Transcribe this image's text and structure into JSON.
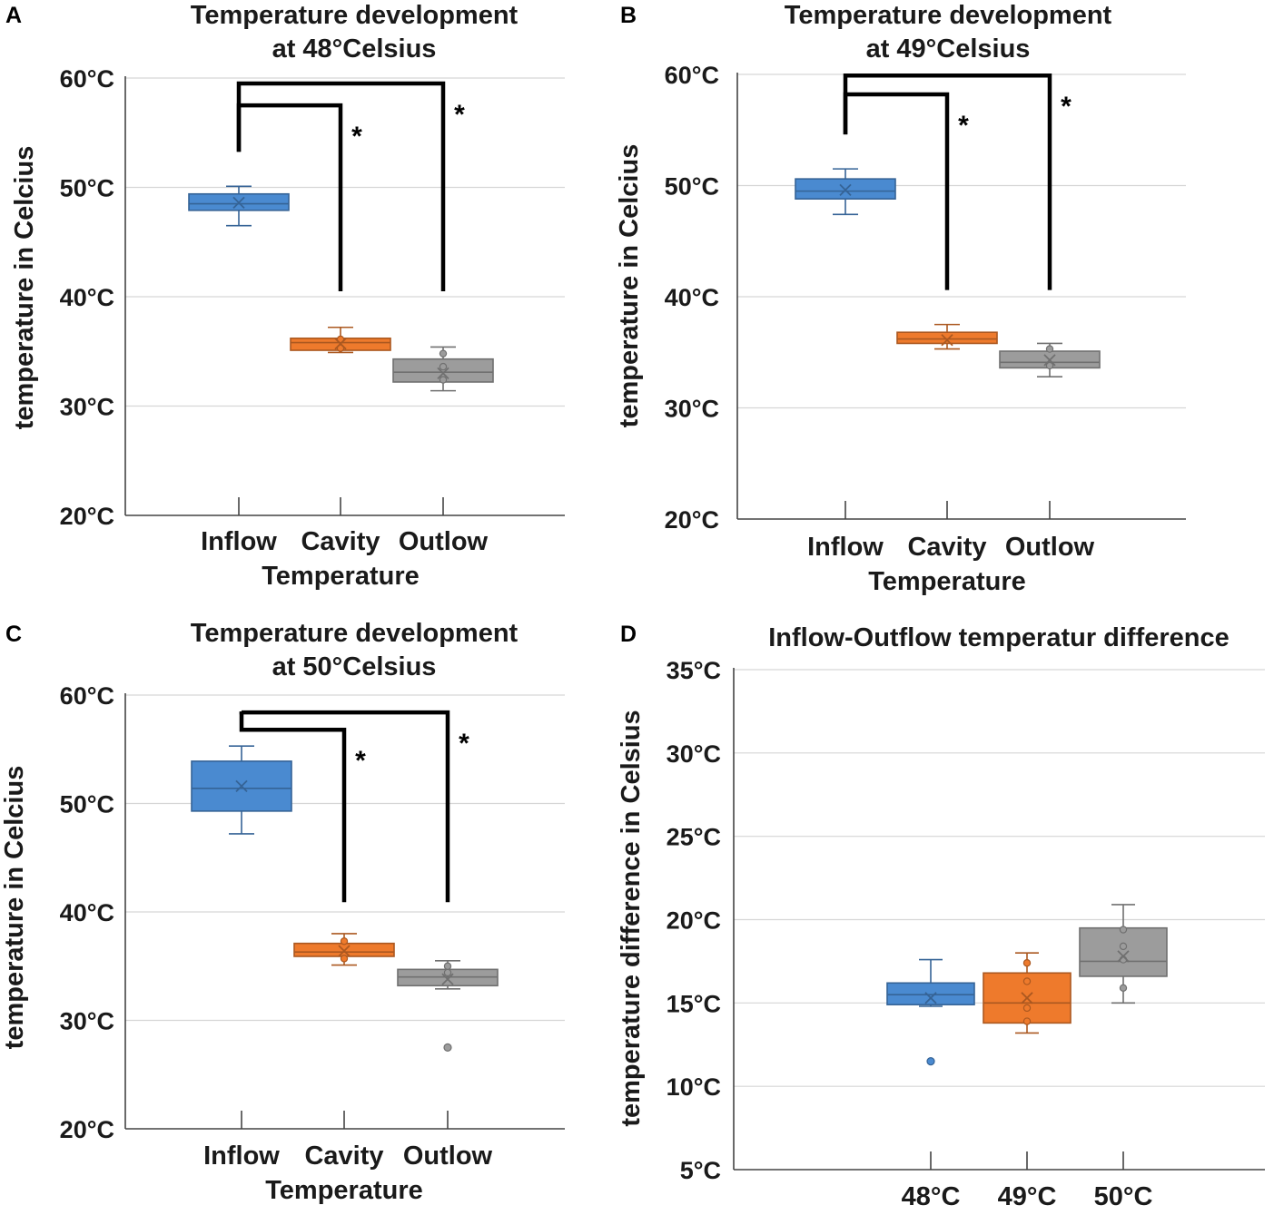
{
  "colors": {
    "Inflow": "#4a8ad0",
    "Cavity": "#ee7a2c",
    "Outlow": "#9c9c9c",
    "48°C": "#4a8ad0",
    "49°C": "#ee7a2c",
    "50°C": "#9c9c9c"
  },
  "chart_data": [
    {
      "panel": "A",
      "type": "box",
      "title_lines": [
        "Temperature development",
        "at 48°Celsius"
      ],
      "ylabel": "temperature in Celcius",
      "xlabel": "Temperature",
      "ylim": [
        20,
        60
      ],
      "yticks": [
        {
          "v": 20,
          "label": "20°C"
        },
        {
          "v": 30,
          "label": "30°C"
        },
        {
          "v": 40,
          "label": "40°C"
        },
        {
          "v": 50,
          "label": "50°C"
        },
        {
          "v": 60,
          "label": "60°C"
        }
      ],
      "categories": [
        "Inflow",
        "Cavity",
        "Outlow"
      ],
      "boxes": [
        {
          "category": "Inflow",
          "min": 46.5,
          "q1": 47.9,
          "median": 48.5,
          "q3": 49.4,
          "max": 50.1,
          "mean": 48.6,
          "points": [],
          "outliers": []
        },
        {
          "category": "Cavity",
          "min": 34.9,
          "q1": 35.1,
          "median": 35.8,
          "q3": 36.2,
          "max": 37.2,
          "mean": 35.7,
          "points": [
            35.3,
            36.1
          ],
          "outliers": []
        },
        {
          "category": "Outlow",
          "min": 31.4,
          "q1": 32.2,
          "median": 33.1,
          "q3": 34.3,
          "max": 35.4,
          "mean": 33.0,
          "points": [
            32.4,
            33.6,
            34.8
          ],
          "outliers": []
        }
      ],
      "brackets": [
        {
          "from": "Inflow",
          "to": "Cavity",
          "y": 57.5,
          "bottom": 40.5,
          "label": "*"
        },
        {
          "from": "Inflow",
          "to": "Outlow",
          "y": 59.5,
          "bottom": 40.5,
          "label": "*"
        }
      ]
    },
    {
      "panel": "B",
      "type": "box",
      "title_lines": [
        "Temperature development",
        "at 49°Celsius"
      ],
      "ylabel": "temperature in Celcius",
      "xlabel": "Temperature",
      "ylim": [
        20,
        60
      ],
      "yticks": [
        {
          "v": 20,
          "label": "20°C"
        },
        {
          "v": 30,
          "label": "30°C"
        },
        {
          "v": 40,
          "label": "40°C"
        },
        {
          "v": 50,
          "label": "50°C"
        },
        {
          "v": 60,
          "label": "60°C"
        }
      ],
      "categories": [
        "Inflow",
        "Cavity",
        "Outlow"
      ],
      "boxes": [
        {
          "category": "Inflow",
          "min": 47.4,
          "q1": 48.8,
          "median": 49.5,
          "q3": 50.6,
          "max": 51.5,
          "mean": 49.6,
          "points": [],
          "outliers": []
        },
        {
          "category": "Cavity",
          "min": 35.3,
          "q1": 35.8,
          "median": 36.2,
          "q3": 36.8,
          "max": 37.5,
          "mean": 36.1,
          "points": [],
          "outliers": []
        },
        {
          "category": "Outlow",
          "min": 32.8,
          "q1": 33.6,
          "median": 34.1,
          "q3": 35.1,
          "max": 35.8,
          "mean": 34.3,
          "points": [
            33.8,
            35.3
          ],
          "outliers": []
        }
      ],
      "brackets": [
        {
          "from": "Inflow",
          "to": "Cavity",
          "y": 58.2,
          "bottom": 40.6,
          "label": "*"
        },
        {
          "from": "Inflow",
          "to": "Outlow",
          "y": 59.9,
          "bottom": 40.6,
          "label": "*"
        }
      ]
    },
    {
      "panel": "C",
      "type": "box",
      "title_lines": [
        "Temperature development",
        "at 50°Celsius"
      ],
      "ylabel": "temperature in Celcius",
      "xlabel": "Temperature",
      "ylim": [
        20,
        60
      ],
      "yticks": [
        {
          "v": 20,
          "label": "20°C"
        },
        {
          "v": 30,
          "label": "30°C"
        },
        {
          "v": 40,
          "label": "40°C"
        },
        {
          "v": 50,
          "label": "50°C"
        },
        {
          "v": 60,
          "label": "60°C"
        }
      ],
      "categories": [
        "Inflow",
        "Cavity",
        "Outlow"
      ],
      "boxes": [
        {
          "category": "Inflow",
          "min": 47.2,
          "q1": 49.3,
          "median": 51.4,
          "q3": 53.9,
          "max": 55.3,
          "mean": 51.6,
          "points": [],
          "outliers": []
        },
        {
          "category": "Cavity",
          "min": 35.1,
          "q1": 35.9,
          "median": 36.3,
          "q3": 37.1,
          "max": 38.0,
          "mean": 36.4,
          "points": [
            35.7,
            37.3
          ],
          "outliers": []
        },
        {
          "category": "Outlow",
          "min": 32.9,
          "q1": 33.2,
          "median": 34.0,
          "q3": 34.7,
          "max": 35.5,
          "mean": 33.8,
          "points": [
            34.4,
            35.0
          ],
          "outliers": [
            27.5
          ]
        }
      ],
      "brackets": [
        {
          "from": "Inflow",
          "to": "Cavity",
          "y": 56.8,
          "bottom": 40.9,
          "label": "*"
        },
        {
          "from": "Inflow",
          "to": "Outlow",
          "y": 58.4,
          "bottom": 40.9,
          "label": "*"
        }
      ]
    },
    {
      "panel": "D",
      "type": "box",
      "title_lines": [
        "Inflow-Outflow temperatur difference"
      ],
      "ylabel": "temperature difference in Celsius",
      "xlabel": "",
      "ylim": [
        5,
        35
      ],
      "yticks": [
        {
          "v": 5,
          "label": "5°C"
        },
        {
          "v": 10,
          "label": "10°C"
        },
        {
          "v": 15,
          "label": "15°C"
        },
        {
          "v": 20,
          "label": "20°C"
        },
        {
          "v": 25,
          "label": "25°C"
        },
        {
          "v": 30,
          "label": "30°C"
        },
        {
          "v": 35,
          "label": "35°C"
        }
      ],
      "categories": [
        "48°C",
        "49°C",
        "50°C"
      ],
      "boxes": [
        {
          "category": "48°C",
          "min": 14.8,
          "q1": 14.9,
          "median": 15.5,
          "q3": 16.2,
          "max": 17.6,
          "mean": 15.3,
          "points": [],
          "outliers": [
            11.5
          ]
        },
        {
          "category": "49°C",
          "min": 13.2,
          "q1": 13.8,
          "median": 15.0,
          "q3": 16.8,
          "max": 18.0,
          "mean": 15.3,
          "points": [
            13.9,
            14.7,
            16.3,
            17.4
          ],
          "outliers": []
        },
        {
          "category": "50°C",
          "min": 15.0,
          "q1": 16.6,
          "median": 17.5,
          "q3": 19.5,
          "max": 20.9,
          "mean": 17.8,
          "points": [
            15.9,
            17.6,
            18.4,
            19.4
          ],
          "outliers": []
        }
      ],
      "brackets": []
    }
  ]
}
